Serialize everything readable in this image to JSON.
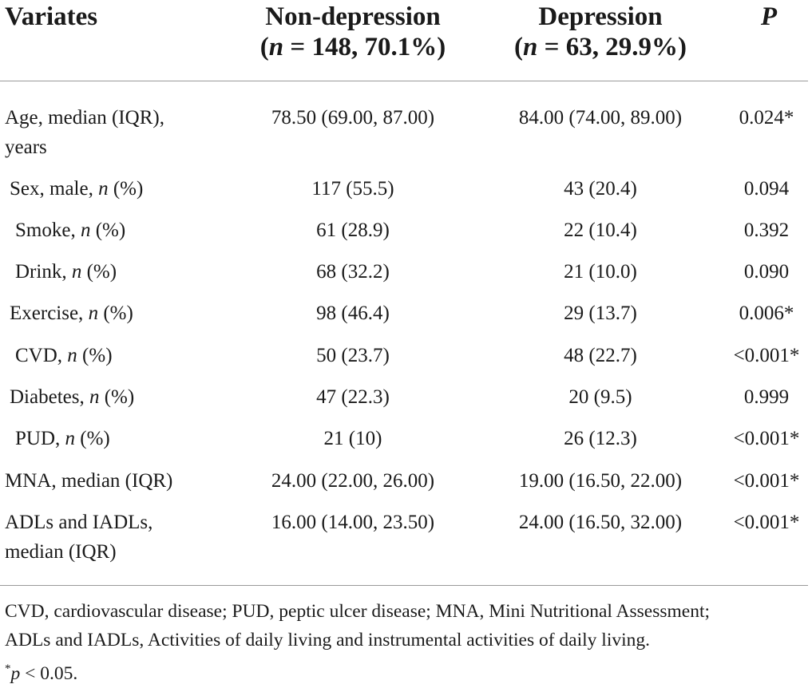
{
  "header": {
    "col1": "Variates",
    "col2_title": "Non-depression",
    "col2_sub_n": "n",
    "col2_sub_rest": " = 148, 70.1%)",
    "col3_title": "Depression",
    "col3_sub_n": "n",
    "col3_sub_rest": " = 63, 29.9%)",
    "col4": "P"
  },
  "rows": [
    {
      "label_line1": "Age, median (IQR),",
      "label_line2": "years",
      "non_depression": "78.50 (69.00, 87.00)",
      "depression": "84.00 (74.00, 89.00)",
      "p": "0.024*"
    },
    {
      "label_pre": "Sex, male, ",
      "label_n": "n",
      "label_post": " (%)",
      "non_depression": "117 (55.5)",
      "depression": "43 (20.4)",
      "p": "0.094"
    },
    {
      "label_pre": "Smoke, ",
      "label_n": "n",
      "label_post": " (%)",
      "non_depression": "61 (28.9)",
      "depression": "22 (10.4)",
      "p": "0.392"
    },
    {
      "label_pre": "Drink, ",
      "label_n": "n",
      "label_post": " (%)",
      "non_depression": "68 (32.2)",
      "depression": "21 (10.0)",
      "p": "0.090"
    },
    {
      "label_pre": "Exercise, ",
      "label_n": "n",
      "label_post": " (%)",
      "non_depression": "98 (46.4)",
      "depression": "29 (13.7)",
      "p": "0.006*"
    },
    {
      "label_pre": "CVD, ",
      "label_n": "n",
      "label_post": " (%)",
      "non_depression": "50 (23.7)",
      "depression": "48 (22.7)",
      "p": "<0.001*"
    },
    {
      "label_pre": "Diabetes, ",
      "label_n": "n",
      "label_post": " (%)",
      "non_depression": "47 (22.3)",
      "depression": "20 (9.5)",
      "p": "0.999"
    },
    {
      "label_pre": "PUD, ",
      "label_n": "n",
      "label_post": " (%)",
      "non_depression": "21 (10)",
      "depression": "26 (12.3)",
      "p": "<0.001*"
    },
    {
      "label": "MNA, median (IQR)",
      "non_depression": "24.00 (22.00, 26.00)",
      "depression": "19.00 (16.50, 22.00)",
      "p": "<0.001*"
    },
    {
      "label_line1": "ADLs and IADLs,",
      "label_line2": "median (IQR)",
      "non_depression": "16.00 (14.00, 23.50)",
      "depression": "24.00 (16.50, 32.00)",
      "p": "<0.001*"
    }
  ],
  "footnotes": {
    "abbrev_line1": "CVD, cardiovascular disease; PUD, peptic ulcer disease; MNA, Mini Nutritional Assessment;",
    "abbrev_line2": "ADLs and IADLs, Activities of daily living and instrumental activities of daily living.",
    "sig_star": "*",
    "sig_p": "p",
    "sig_rest": " < 0.05."
  }
}
